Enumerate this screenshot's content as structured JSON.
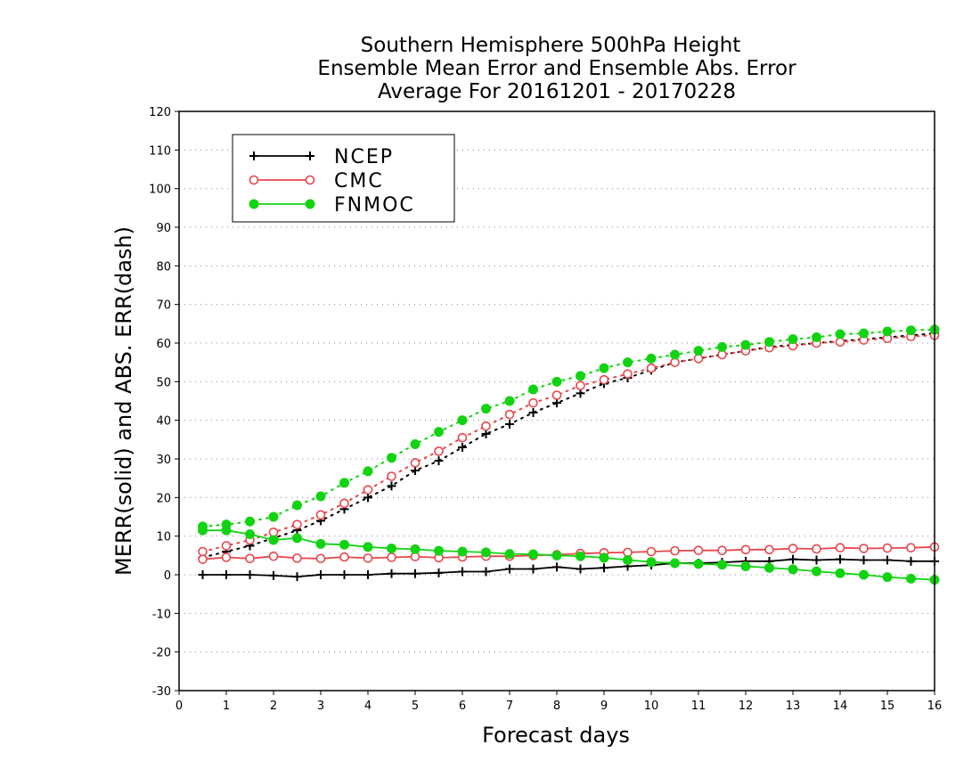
{
  "chart_data": {
    "type": "line",
    "title": [
      "Southern Hemisphere 500hPa Height",
      "Ensemble Mean Error and Ensemble Abs. Error",
      "Average For 20161201 - 20170228"
    ],
    "xlabel": "Forecast days",
    "ylabel": "MERR(solid) and ABS. ERR(dash)",
    "xlim": [
      0,
      16
    ],
    "ylim": [
      -30,
      120
    ],
    "xticks": [
      0,
      1,
      2,
      3,
      4,
      5,
      6,
      7,
      8,
      9,
      10,
      11,
      12,
      13,
      14,
      15,
      16
    ],
    "yticks": [
      -30,
      -20,
      -10,
      0,
      10,
      20,
      30,
      40,
      50,
      60,
      70,
      80,
      90,
      100,
      110,
      120
    ],
    "grid": "horizontal-dotted",
    "legend_position": "top-left",
    "x": [
      0.5,
      1,
      1.5,
      2,
      2.5,
      3,
      3.5,
      4,
      4.5,
      5,
      5.5,
      6,
      6.5,
      7,
      7.5,
      8,
      8.5,
      9,
      9.5,
      10,
      10.5,
      11,
      11.5,
      12,
      12.5,
      13,
      13.5,
      14,
      14.5,
      15,
      15.5,
      16
    ],
    "series": [
      {
        "name": "NCEP",
        "color": "#000000",
        "marker": "plus",
        "merr": [
          0,
          0,
          0,
          -0.2,
          -0.5,
          0,
          0,
          0,
          0.3,
          0.3,
          0.5,
          0.8,
          0.8,
          1.5,
          1.5,
          2,
          1.5,
          1.8,
          2.2,
          2.5,
          3,
          3,
          3.2,
          3.5,
          3.5,
          4,
          3.8,
          4,
          3.8,
          3.8,
          3.5,
          3.5
        ],
        "abs_err": [
          4.5,
          6,
          7.5,
          9.5,
          11.5,
          14,
          17,
          20,
          23,
          27,
          29.5,
          33,
          36.5,
          39,
          42,
          44.5,
          47,
          49.5,
          51,
          53,
          55,
          56,
          57,
          58,
          59,
          59.5,
          60,
          60.5,
          61,
          61.5,
          62,
          62.5
        ]
      },
      {
        "name": "CMC",
        "color": "#e8464a",
        "marker": "open-circle",
        "merr": [
          4,
          4.5,
          4.2,
          4.8,
          4.3,
          4.2,
          4.6,
          4.3,
          4.5,
          4.7,
          4.4,
          4.6,
          4.8,
          4.8,
          5,
          5.2,
          5.5,
          5.7,
          5.8,
          6,
          6.2,
          6.3,
          6.3,
          6.5,
          6.5,
          6.8,
          6.7,
          7,
          6.8,
          6.9,
          7,
          7.2
        ],
        "abs_err": [
          6,
          7.5,
          9,
          11,
          13,
          15.5,
          18.5,
          22,
          25.5,
          29,
          32,
          35.5,
          38.5,
          41.5,
          44.5,
          46.5,
          49,
          50.5,
          52,
          53.5,
          55,
          56,
          57,
          58,
          58.8,
          59.3,
          60,
          60.3,
          60.8,
          61.2,
          61.7,
          62
        ]
      },
      {
        "name": "FNMOC",
        "color": "#12d312",
        "marker": "filled-circle",
        "merr": [
          11.5,
          11.5,
          10.5,
          9,
          9.5,
          8,
          7.8,
          7.2,
          6.8,
          6.6,
          6.2,
          6,
          5.8,
          5.4,
          5.3,
          5,
          4.8,
          4.4,
          3.8,
          3.3,
          3,
          2.8,
          2.6,
          2.2,
          1.8,
          1.4,
          0.9,
          0.4,
          0,
          -0.6,
          -1,
          -1.3
        ],
        "abs_err": [
          12.5,
          13,
          13.8,
          15,
          18,
          20.3,
          23.8,
          26.8,
          30.3,
          33.8,
          37,
          40,
          43,
          45,
          48,
          50,
          51.5,
          53.5,
          55,
          56,
          57,
          58,
          59,
          59.5,
          60.3,
          61,
          61.5,
          62.3,
          62.5,
          63,
          63.3,
          63.5
        ]
      }
    ]
  }
}
